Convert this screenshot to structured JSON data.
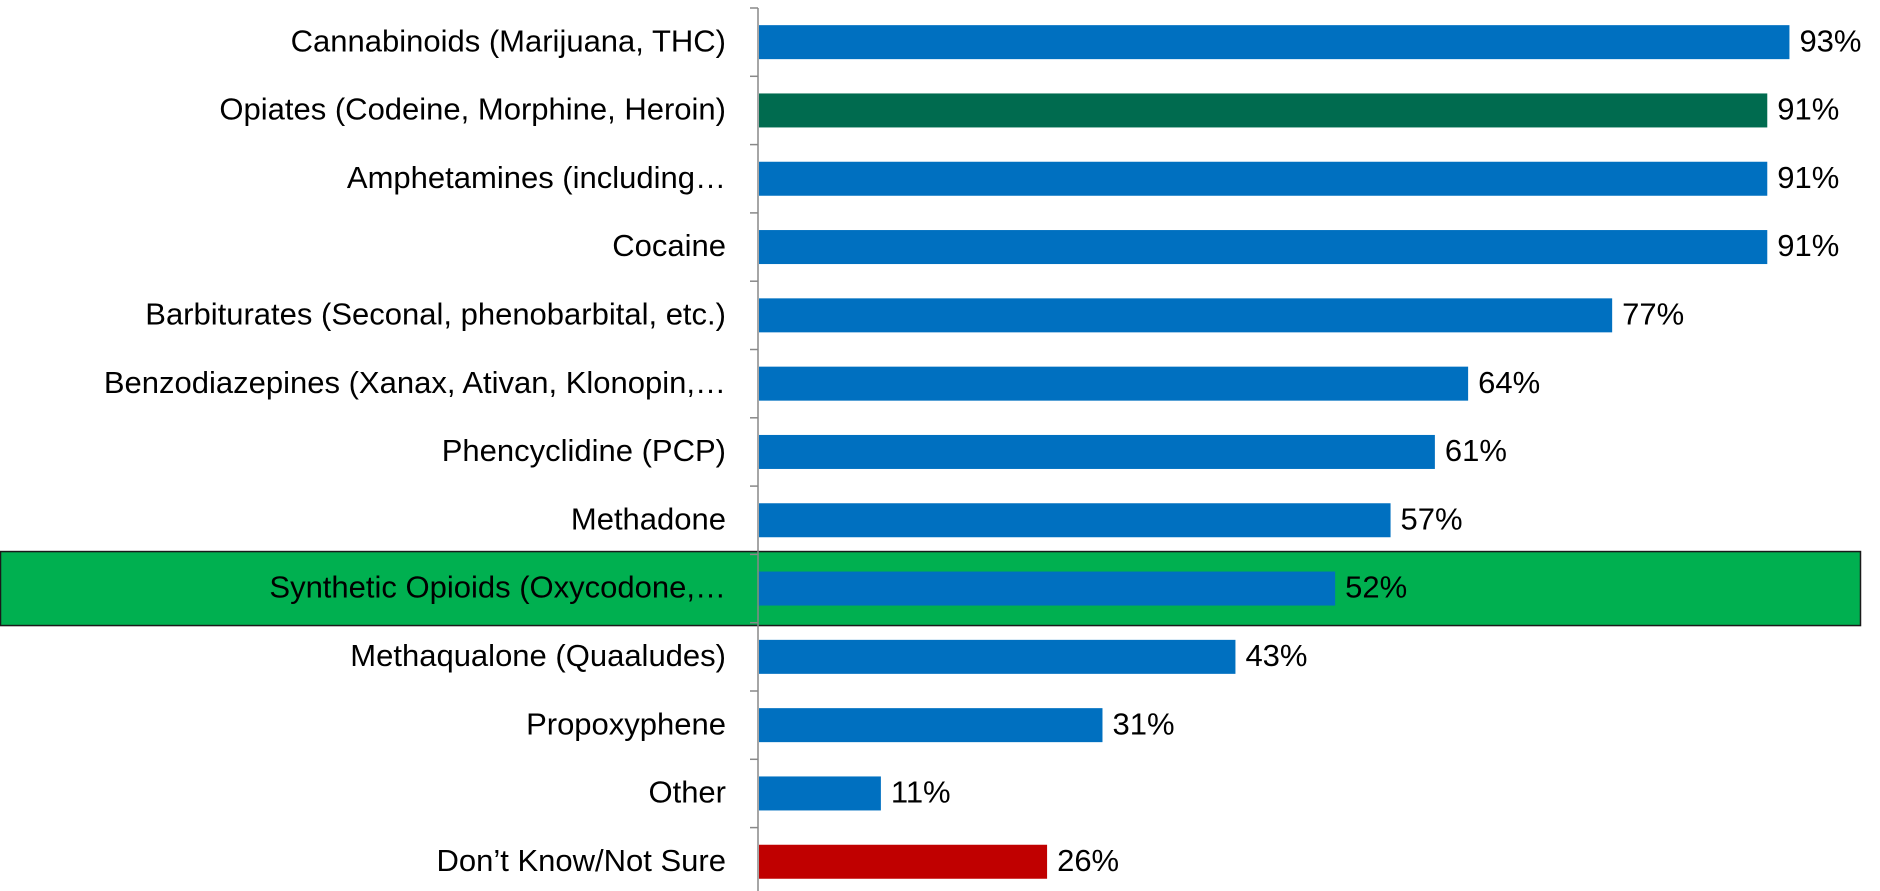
{
  "chart_data": {
    "type": "barh",
    "categories": [
      "Cannabinoids (Marijuana, THC)",
      "Opiates (Codeine, Morphine, Heroin)",
      "Amphetamines (including…",
      "Cocaine",
      "Barbiturates (Seconal, phenobarbital, etc.)",
      "Benzodiazepines (Xanax, Ativan, Klonopin,…",
      "Phencyclidine (PCP)",
      "Methadone",
      "Synthetic Opioids (Oxycodone,…",
      "Methaqualone (Quaaludes)",
      "Propoxyphene",
      "Other",
      "Don’t Know/Not Sure"
    ],
    "values": [
      93,
      91,
      91,
      91,
      77,
      64,
      61,
      57,
      52,
      43,
      31,
      11,
      26
    ],
    "value_labels": [
      "93%",
      "91%",
      "91%",
      "91%",
      "77%",
      "64%",
      "61%",
      "57%",
      "52%",
      "43%",
      "31%",
      "11%",
      "26%"
    ],
    "colors": [
      "#0070c0",
      "#006b4f",
      "#0070c0",
      "#0070c0",
      "#0070c0",
      "#0070c0",
      "#0070c0",
      "#0070c0",
      "#0070c0",
      "#0070c0",
      "#0070c0",
      "#0070c0",
      "#c00000"
    ],
    "highlight": {
      "index": 8,
      "color": "#00b050"
    },
    "xlim": [
      0,
      100
    ]
  }
}
